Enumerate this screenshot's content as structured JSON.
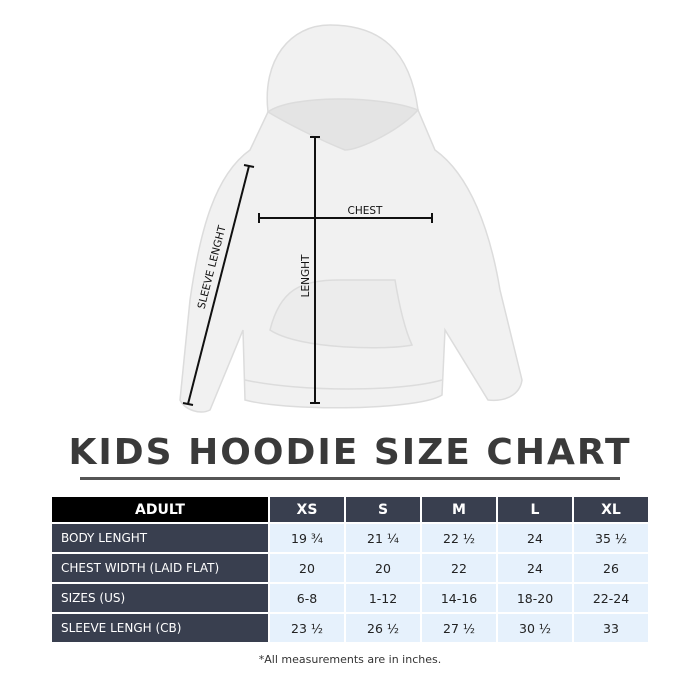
{
  "diagram": {
    "labels": {
      "chest": "CHEST",
      "length": "LENGHT",
      "sleeve": "SLEEVE LENGHT"
    },
    "garment_color": "#f1f1f1"
  },
  "title": "KIDS HOODIE SIZE CHART",
  "table": {
    "corner": "ADULT",
    "sizes": [
      "XS",
      "S",
      "M",
      "L",
      "XL"
    ],
    "rows": [
      {
        "label": "BODY LENGHT",
        "values": [
          "19 ¾",
          "21 ¼",
          "22 ½",
          "24",
          "35 ½"
        ]
      },
      {
        "label": "CHEST WIDTH (LAID FLAT)",
        "values": [
          "20",
          "20",
          "22",
          "24",
          "26"
        ]
      },
      {
        "label": "SIZES (US)",
        "values": [
          "6-8",
          "1-12",
          "14-16",
          "18-20",
          "22-24"
        ]
      },
      {
        "label": "SLEEVE LENGH (CB)",
        "values": [
          "23 ½",
          "26 ½",
          "27 ½",
          "30 ½",
          "33"
        ]
      }
    ],
    "header_color": "#393f4f",
    "cell_color": "#e6f1fc"
  },
  "footnote": "*All measurements are in inches."
}
